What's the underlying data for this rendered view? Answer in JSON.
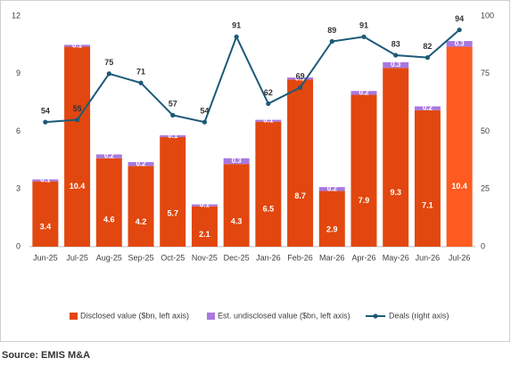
{
  "chart_data": {
    "type": "bar_line",
    "categories": [
      "Jun-25",
      "Jul-25",
      "Aug-25",
      "Sep-25",
      "Oct-25",
      "Nov-25",
      "Dec-25",
      "Jan-26",
      "Feb-26",
      "Mar-26",
      "Apr-26",
      "May-26",
      "Jun-26",
      "Jul-26"
    ],
    "series": [
      {
        "name": "Disclosed value ($bn, left axis)",
        "color": "#e2470f",
        "colors": [
          "#e2470f",
          "#e2470f",
          "#e2470f",
          "#e2470f",
          "#e2470f",
          "#e2470f",
          "#e2470f",
          "#e2470f",
          "#e2470f",
          "#e2470f",
          "#e2470f",
          "#e2470f",
          "#e2470f",
          "#ff5a1f"
        ],
        "values": [
          3.4,
          10.4,
          4.6,
          4.2,
          5.7,
          2.1,
          4.3,
          6.5,
          8.7,
          2.9,
          7.9,
          9.3,
          7.1,
          10.4
        ]
      },
      {
        "name": "Est. undisclosed value ($bn, left axis)",
        "color": "#a878e0",
        "values": [
          0.1,
          0.1,
          0.2,
          0.2,
          0.1,
          0.1,
          0.3,
          0.1,
          0.1,
          0.2,
          0.2,
          0.3,
          0.2,
          0.3
        ]
      },
      {
        "name": "Deals (right axis)",
        "color": "#1c5a78",
        "axis": "y2",
        "values": [
          54,
          55,
          75,
          71,
          57,
          54,
          91,
          62,
          69,
          89,
          91,
          83,
          82,
          94
        ]
      }
    ],
    "ylim": [
      0,
      12
    ],
    "yticks": [
      0,
      3,
      6,
      9,
      12
    ],
    "y2lim": [
      0,
      100
    ],
    "y2ticks": [
      0,
      25,
      50,
      75,
      100
    ],
    "legend": "bottom",
    "source": "Source: EMIS M&A"
  }
}
